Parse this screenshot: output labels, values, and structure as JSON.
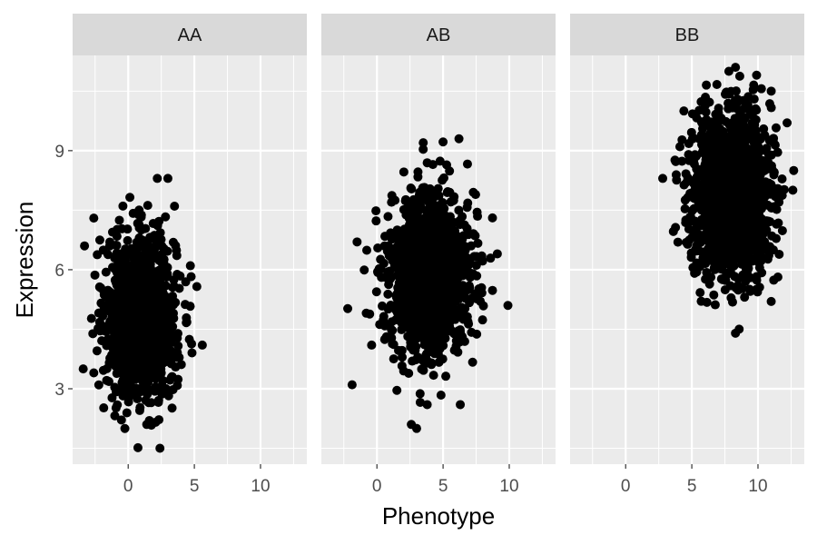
{
  "chart_data": {
    "type": "scatter",
    "facets": [
      "AA",
      "AB",
      "BB"
    ],
    "xlabel": "Phenotype",
    "ylabel": "Expression",
    "xlim": [
      -4.2,
      13.5
    ],
    "ylim": [
      1.1,
      11.4
    ],
    "x_ticks": [
      0,
      5,
      10
    ],
    "y_ticks": [
      3,
      6,
      9
    ],
    "grid": true,
    "legend": "none",
    "colors": {
      "panel_bg": "#ebebeb",
      "strip_bg": "#d9d9d9",
      "grid": "#ffffff",
      "point": "#000000"
    },
    "groups": [
      {
        "facet": "AA",
        "center": [
          1.0,
          4.8
        ],
        "spread": [
          1.3,
          1.0
        ],
        "n": 1300,
        "outliers": [
          [
            2.4,
            1.5
          ],
          [
            3.5,
            7.6
          ],
          [
            2.2,
            8.3
          ],
          [
            3.0,
            8.3
          ],
          [
            5.6,
            4.1
          ],
          [
            -3.4,
            3.5
          ],
          [
            1.6,
            2.2
          ],
          [
            4.7,
            6.1
          ],
          [
            -3.3,
            6.6
          ],
          [
            -2.6,
            7.3
          ],
          [
            1.4,
            2.1
          ],
          [
            -2.6,
            3.4
          ]
        ]
      },
      {
        "facet": "AB",
        "center": [
          4.0,
          5.9
        ],
        "spread": [
          1.5,
          1.0
        ],
        "n": 1500,
        "outliers": [
          [
            -1.5,
            6.7
          ],
          [
            9.9,
            5.1
          ],
          [
            3.0,
            2.0
          ],
          [
            2.6,
            2.1
          ],
          [
            6.2,
            9.3
          ],
          [
            3.5,
            9.2
          ],
          [
            -0.4,
            4.1
          ],
          [
            6.3,
            2.6
          ],
          [
            9.1,
            6.4
          ],
          [
            3.8,
            2.6
          ]
        ]
      },
      {
        "facet": "BB",
        "center": [
          8.0,
          7.9
        ],
        "spread": [
          1.5,
          1.0
        ],
        "n": 1500,
        "outliers": [
          [
            2.8,
            8.3
          ],
          [
            8.3,
            4.4
          ],
          [
            12.7,
            8.5
          ],
          [
            11.0,
            5.2
          ],
          [
            11.0,
            10.5
          ],
          [
            7.8,
            11.0
          ],
          [
            8.3,
            11.1
          ],
          [
            12.2,
            9.7
          ],
          [
            4.1,
            9.1
          ],
          [
            4.4,
            10.0
          ]
        ]
      }
    ]
  }
}
